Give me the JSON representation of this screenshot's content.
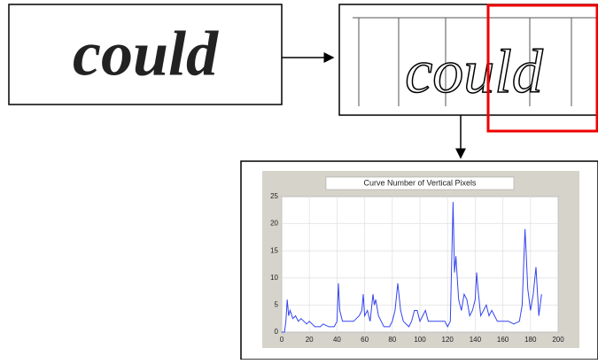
{
  "diagram": {
    "input_word": "could",
    "segmented_word": "could"
  },
  "chart_data": {
    "type": "line",
    "title": "Curve Number of Vertical Pixels",
    "color": "#3344ee",
    "x": [
      0,
      2,
      3,
      4,
      5,
      6,
      8,
      10,
      12,
      14,
      16,
      18,
      20,
      22,
      24,
      28,
      30,
      34,
      38,
      40,
      41,
      42,
      44,
      48,
      52,
      54,
      56,
      58,
      59,
      60,
      62,
      64,
      66,
      67,
      68,
      70,
      72,
      74,
      78,
      80,
      82,
      84,
      86,
      88,
      92,
      94,
      96,
      98,
      100,
      102,
      104,
      106,
      110,
      114,
      118,
      120,
      122,
      124,
      125,
      126,
      128,
      130,
      132,
      134,
      136,
      138,
      140,
      141,
      142,
      144,
      146,
      148,
      150,
      152,
      156,
      160,
      164,
      168,
      172,
      174,
      176,
      177,
      178,
      180,
      182,
      184,
      186,
      188
    ],
    "values": [
      0,
      0,
      2,
      6,
      3,
      4,
      2.5,
      3,
      2,
      2.5,
      2,
      1.5,
      2,
      1.5,
      1,
      1,
      1.5,
      1,
      1,
      2,
      9,
      4,
      2,
      2,
      2,
      2.5,
      3,
      4,
      7,
      3,
      4,
      2,
      7,
      5,
      6,
      3,
      2,
      1,
      1,
      2,
      4,
      9,
      4,
      2,
      1,
      2,
      4,
      4,
      2,
      3,
      4,
      2,
      2,
      2,
      2,
      1,
      2,
      24,
      11,
      14,
      6,
      4,
      7,
      6,
      3,
      4,
      6,
      11,
      8,
      3,
      4,
      5,
      3,
      4,
      2,
      2,
      2,
      1.5,
      2,
      5,
      19,
      14,
      8,
      4,
      7,
      12,
      3,
      7
    ],
    "xlim": [
      0,
      200
    ],
    "ylim": [
      0,
      25
    ],
    "xticks": [
      0,
      20,
      40,
      60,
      80,
      100,
      120,
      140,
      160,
      180,
      200
    ],
    "yticks": [
      0,
      5,
      10,
      15,
      20,
      25
    ],
    "grid": true
  }
}
